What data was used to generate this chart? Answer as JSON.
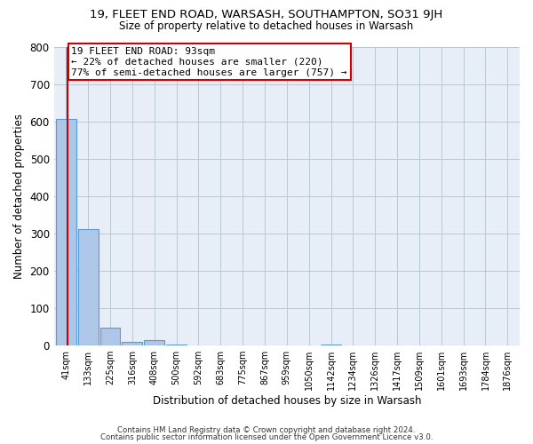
{
  "title": "19, FLEET END ROAD, WARSASH, SOUTHAMPTON, SO31 9JH",
  "subtitle": "Size of property relative to detached houses in Warsash",
  "xlabel": "Distribution of detached houses by size in Warsash",
  "ylabel": "Number of detached properties",
  "bar_labels": [
    "41sqm",
    "133sqm",
    "225sqm",
    "316sqm",
    "408sqm",
    "500sqm",
    "592sqm",
    "683sqm",
    "775sqm",
    "867sqm",
    "959sqm",
    "1050sqm",
    "1142sqm",
    "1234sqm",
    "1326sqm",
    "1417sqm",
    "1509sqm",
    "1601sqm",
    "1693sqm",
    "1784sqm",
    "1876sqm"
  ],
  "bar_values": [
    605,
    310,
    48,
    10,
    13,
    1,
    0,
    0,
    0,
    0,
    0,
    0,
    2,
    0,
    0,
    0,
    0,
    0,
    0,
    0,
    0
  ],
  "bar_color": "#aec6e8",
  "bar_edgecolor": "#5b9bd5",
  "property_line_label": "19 FLEET END ROAD: 93sqm",
  "annotation_line1": "← 22% of detached houses are smaller (220)",
  "annotation_line2": "77% of semi-detached houses are larger (757) →",
  "annotation_box_color": "#ffffff",
  "annotation_box_edgecolor": "#cc0000",
  "vline_color": "#cc0000",
  "ylim": [
    0,
    800
  ],
  "yticks": [
    0,
    100,
    200,
    300,
    400,
    500,
    600,
    700,
    800
  ],
  "bg_color": "#e8eef8",
  "footer_line1": "Contains HM Land Registry data © Crown copyright and database right 2024.",
  "footer_line2": "Contains public sector information licensed under the Open Government Licence v3.0."
}
